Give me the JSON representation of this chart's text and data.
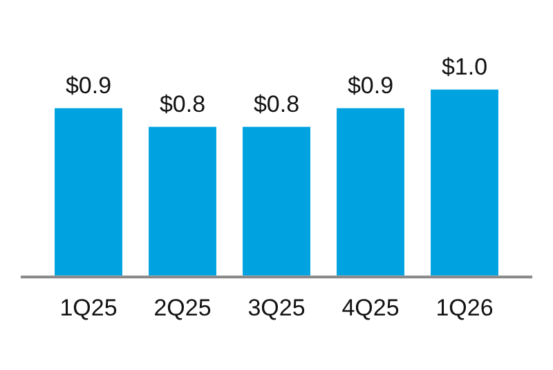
{
  "chart_data": {
    "type": "bar",
    "categories": [
      "1Q25",
      "2Q25",
      "3Q25",
      "4Q25",
      "1Q26"
    ],
    "values": [
      0.9,
      0.8,
      0.8,
      0.9,
      1.0
    ],
    "value_labels": [
      "$0.9",
      "$0.8",
      "$0.8",
      "$0.9",
      "$1.0"
    ],
    "color": "#00a3e0",
    "grid": false,
    "legend": false
  }
}
